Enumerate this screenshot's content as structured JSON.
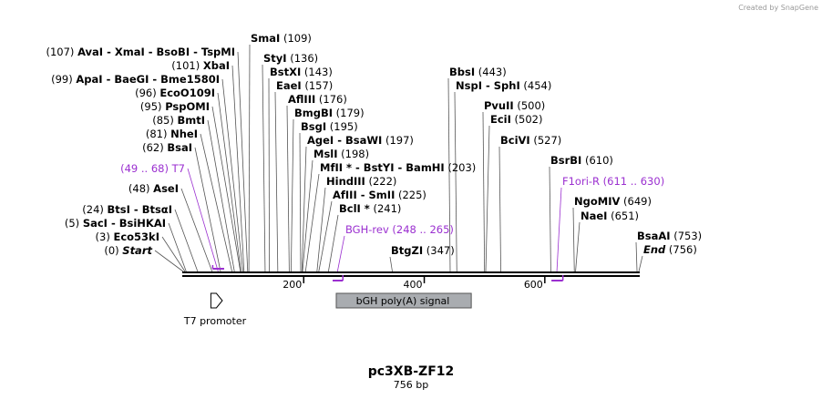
{
  "credit": "Created by SnapGene",
  "plasmid": {
    "name": "pc3XB-ZF12",
    "length_label": "756 bp",
    "length": 756
  },
  "colors": {
    "primer": "#9b30d0",
    "feature_fill": "#a9acb0",
    "backbone": "#000000"
  },
  "axis": {
    "ticks": [
      {
        "value": 200,
        "label": "200"
      },
      {
        "value": 400,
        "label": "400"
      },
      {
        "value": 600,
        "label": "600"
      }
    ]
  },
  "left_labels": [
    {
      "pos": "(107)",
      "text": "AvaI  -  XmaI  -  BsoBI  -  TspMI",
      "bp": 107,
      "style": "bold"
    },
    {
      "pos": "(101)",
      "text": "XbaI",
      "bp": 101,
      "style": "bold"
    },
    {
      "pos": "(99)",
      "text": "ApaI  -  BaeGI  -  Bme1580I",
      "bp": 99,
      "style": "bold"
    },
    {
      "pos": "(96)",
      "text": "EcoO109I",
      "bp": 96,
      "style": "bold"
    },
    {
      "pos": "(95)",
      "text": "PspOMI",
      "bp": 95,
      "style": "bold"
    },
    {
      "pos": "(85)",
      "text": "BmtI",
      "bp": 85,
      "style": "bold"
    },
    {
      "pos": "(81)",
      "text": "NheI",
      "bp": 81,
      "style": "bold"
    },
    {
      "pos": "(62)",
      "text": "BsaI",
      "bp": 62,
      "style": "bold"
    },
    {
      "pos": "(49 .. 68)",
      "text": "T7",
      "bp": 58,
      "style": "primer"
    },
    {
      "pos": "(48)",
      "text": "AseI",
      "bp": 48,
      "style": "bold"
    },
    {
      "pos": "(24)",
      "text": "BtsI  -  BtsαI",
      "bp": 24,
      "style": "bold"
    },
    {
      "pos": "(5)",
      "text": "SacI  -  BsiHKAI",
      "bp": 5,
      "style": "bold"
    },
    {
      "pos": "(3)",
      "text": "Eco53kI",
      "bp": 3,
      "style": "bold"
    },
    {
      "pos": "(0)",
      "text": "Start",
      "bp": 0,
      "style": "bolditalic"
    }
  ],
  "right_labels": [
    {
      "text": "SmaI",
      "pos": "(109)",
      "bp": 109,
      "style": "bold"
    },
    {
      "text": "StyI",
      "pos": "(136)",
      "bp": 136,
      "style": "bold"
    },
    {
      "text": "BstXI",
      "pos": "(143)",
      "bp": 143,
      "style": "bold"
    },
    {
      "text": "EaeI",
      "pos": "(157)",
      "bp": 157,
      "style": "bold"
    },
    {
      "text": "AflIII",
      "pos": "(176)",
      "bp": 176,
      "style": "bold"
    },
    {
      "text": "BmgBI",
      "pos": "(179)",
      "bp": 179,
      "style": "bold"
    },
    {
      "text": "BsgI",
      "pos": "(195)",
      "bp": 195,
      "style": "bold"
    },
    {
      "text": "AgeI  -  BsaWI",
      "pos": "(197)",
      "bp": 197,
      "style": "bold"
    },
    {
      "text": "MslI",
      "pos": "(198)",
      "bp": 198,
      "style": "bold"
    },
    {
      "text": "MfII *  -  BstYI  -  BamHI",
      "pos": "(203)",
      "bp": 203,
      "style": "bold"
    },
    {
      "text": "HindIII",
      "pos": "(222)",
      "bp": 222,
      "style": "bold"
    },
    {
      "text": "AfIII  -  SmII",
      "pos": "(225)",
      "bp": 225,
      "style": "bold"
    },
    {
      "text": "BclI *",
      "pos": "(241)",
      "bp": 241,
      "style": "bold"
    },
    {
      "text": "BGH-rev",
      "pos": "(248 .. 265)",
      "bp": 256,
      "style": "primer"
    },
    {
      "text": "BtgZI",
      "pos": "(347)",
      "bp": 347,
      "style": "bold"
    },
    {
      "text": "BbsI",
      "pos": "(443)",
      "bp": 443,
      "style": "bold"
    },
    {
      "text": "NspI  -  SphI",
      "pos": "(454)",
      "bp": 454,
      "style": "bold"
    },
    {
      "text": "PvuII",
      "pos": "(500)",
      "bp": 500,
      "style": "bold"
    },
    {
      "text": "EciI",
      "pos": "(502)",
      "bp": 502,
      "style": "bold"
    },
    {
      "text": "BciVI",
      "pos": "(527)",
      "bp": 527,
      "style": "bold"
    },
    {
      "text": "BsrBI",
      "pos": "(610)",
      "bp": 610,
      "style": "bold"
    },
    {
      "text": "F1ori-R",
      "pos": "(611 .. 630)",
      "bp": 620,
      "style": "primer"
    },
    {
      "text": "NgoMIV",
      "pos": "(649)",
      "bp": 649,
      "style": "bold"
    },
    {
      "text": "NaeI",
      "pos": "(651)",
      "bp": 651,
      "style": "bold"
    },
    {
      "text": "BsaAI",
      "pos": "(753)",
      "bp": 753,
      "style": "bold"
    },
    {
      "text": "End",
      "pos": "(756)",
      "bp": 756,
      "style": "bolditalic"
    }
  ],
  "features": [
    {
      "name": "T7 promoter",
      "start": 49,
      "end": 68,
      "kind": "promoter-arrow"
    },
    {
      "name": "bGH poly(A) signal",
      "start": 254,
      "end": 478,
      "kind": "box"
    }
  ],
  "primers": [
    {
      "name": "T7",
      "start": 49,
      "end": 68,
      "strand": "top"
    },
    {
      "name": "BGH-rev",
      "start": 248,
      "end": 265,
      "strand": "bottom"
    },
    {
      "name": "F1ori-R",
      "start": 611,
      "end": 630,
      "strand": "bottom"
    }
  ]
}
